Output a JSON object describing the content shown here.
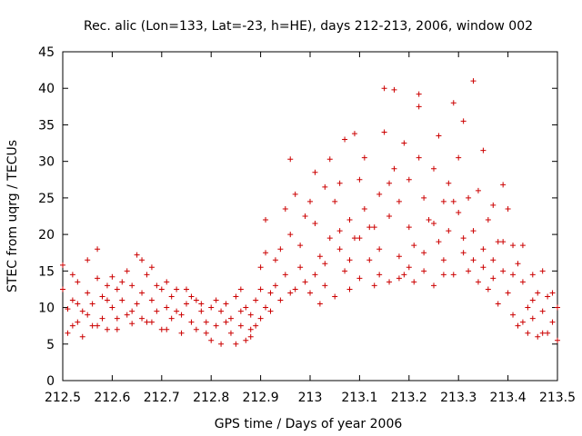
{
  "chart_data": {
    "type": "scatter",
    "title": "Rec. alic (Lon=133, Lat=-23, h=HE), days 212-213, 2006, window 002",
    "xlabel": "GPS time / Days of year 2006",
    "ylabel": "STEC from uqrg / TECUs",
    "xlim": [
      212.5,
      213.5
    ],
    "ylim": [
      0,
      45
    ],
    "x_ticks": [
      212.5,
      212.6,
      212.7,
      212.8,
      212.9,
      213.0,
      213.1,
      213.2,
      213.3,
      213.4,
      213.5
    ],
    "x_tick_labels": [
      "212.5",
      "212.6",
      "212.7",
      "212.8",
      "212.9",
      "213",
      "213.1",
      "213.2",
      "213.3",
      "213.4",
      "213.5"
    ],
    "y_ticks": [
      0,
      5,
      10,
      15,
      20,
      25,
      30,
      35,
      40,
      45
    ],
    "y_tick_labels": [
      "0",
      "5",
      "10",
      "15",
      "20",
      "25",
      "30",
      "35",
      "40",
      "45"
    ],
    "grid": false,
    "marker": "+",
    "color": "#cc0000",
    "series": [
      {
        "name": "",
        "points": [
          [
            212.5,
            15.8
          ],
          [
            212.5,
            12.5
          ],
          [
            212.51,
            9.8
          ],
          [
            212.51,
            6.5
          ],
          [
            212.52,
            14.5
          ],
          [
            212.52,
            11.0
          ],
          [
            212.53,
            8.0
          ],
          [
            212.53,
            13.5
          ],
          [
            212.54,
            9.5
          ],
          [
            212.54,
            6.0
          ],
          [
            212.55,
            12.0
          ],
          [
            212.55,
            16.5
          ],
          [
            212.56,
            10.5
          ],
          [
            212.56,
            7.5
          ],
          [
            212.57,
            14.0
          ],
          [
            212.57,
            18.0
          ],
          [
            212.58,
            11.5
          ],
          [
            212.58,
            8.5
          ],
          [
            212.59,
            13.0
          ],
          [
            212.59,
            7.0
          ],
          [
            212.6,
            10.0
          ],
          [
            212.6,
            14.2
          ],
          [
            212.61,
            8.5
          ],
          [
            212.61,
            12.5
          ],
          [
            212.62,
            11.0
          ],
          [
            212.63,
            9.0
          ],
          [
            212.63,
            15.0
          ],
          [
            212.64,
            13.0
          ],
          [
            212.64,
            7.8
          ],
          [
            212.65,
            17.2
          ],
          [
            212.65,
            10.5
          ],
          [
            212.66,
            16.5
          ],
          [
            212.66,
            12.0
          ],
          [
            212.67,
            8.0
          ],
          [
            212.67,
            14.5
          ],
          [
            212.68,
            11.0
          ],
          [
            212.68,
            15.5
          ],
          [
            212.69,
            9.5
          ],
          [
            212.7,
            12.5
          ],
          [
            212.7,
            7.0
          ],
          [
            212.71,
            10.0
          ],
          [
            212.71,
            13.5
          ],
          [
            212.72,
            8.5
          ],
          [
            212.72,
            11.5
          ],
          [
            212.73,
            12.5
          ],
          [
            212.74,
            9.0
          ],
          [
            212.74,
            6.5
          ],
          [
            212.75,
            10.5
          ],
          [
            212.75,
            12.5
          ],
          [
            212.76,
            8.0
          ],
          [
            212.77,
            11.0
          ],
          [
            212.77,
            7.0
          ],
          [
            212.78,
            10.5
          ],
          [
            212.78,
            9.5
          ],
          [
            212.79,
            6.5
          ],
          [
            212.8,
            10.0
          ],
          [
            212.8,
            5.5
          ],
          [
            212.81,
            11.0
          ],
          [
            212.81,
            7.5
          ],
          [
            212.82,
            9.5
          ],
          [
            212.82,
            5.0
          ],
          [
            212.83,
            10.5
          ],
          [
            212.84,
            6.5
          ],
          [
            212.84,
            8.5
          ],
          [
            212.85,
            11.5
          ],
          [
            212.85,
            5.0
          ],
          [
            212.86,
            7.5
          ],
          [
            212.86,
            12.5
          ],
          [
            212.87,
            5.5
          ],
          [
            212.87,
            10.0
          ],
          [
            212.88,
            6.0
          ],
          [
            212.88,
            9.0
          ],
          [
            212.89,
            11.0
          ],
          [
            212.89,
            7.5
          ],
          [
            212.9,
            15.5
          ],
          [
            212.9,
            8.5
          ],
          [
            212.91,
            22.0
          ],
          [
            212.91,
            10.0
          ],
          [
            212.91,
            17.5
          ],
          [
            212.92,
            12.0
          ],
          [
            212.92,
            9.5
          ],
          [
            212.93,
            13.0
          ],
          [
            212.94,
            18.0
          ],
          [
            212.94,
            11.0
          ],
          [
            212.95,
            23.5
          ],
          [
            212.95,
            14.5
          ],
          [
            212.96,
            30.3
          ],
          [
            212.96,
            20.0
          ],
          [
            212.97,
            25.5
          ],
          [
            212.97,
            12.5
          ],
          [
            212.98,
            18.5
          ],
          [
            212.98,
            15.5
          ],
          [
            212.99,
            22.5
          ],
          [
            213.0,
            12.0
          ],
          [
            213.01,
            28.5
          ],
          [
            213.01,
            14.5
          ],
          [
            213.01,
            21.5
          ],
          [
            213.02,
            10.5
          ],
          [
            213.02,
            17.0
          ],
          [
            213.03,
            26.5
          ],
          [
            213.03,
            13.0
          ],
          [
            213.04,
            30.3
          ],
          [
            213.04,
            19.5
          ],
          [
            213.05,
            24.5
          ],
          [
            213.05,
            11.5
          ],
          [
            213.06,
            18.0
          ],
          [
            213.06,
            27.0
          ],
          [
            213.07,
            15.0
          ],
          [
            213.07,
            33.0
          ],
          [
            213.08,
            22.0
          ],
          [
            213.08,
            12.5
          ],
          [
            213.09,
            33.8
          ],
          [
            213.09,
            19.5
          ],
          [
            213.1,
            27.5
          ],
          [
            213.1,
            14.0
          ],
          [
            213.11,
            23.5
          ],
          [
            213.11,
            30.5
          ],
          [
            213.12,
            16.5
          ],
          [
            213.13,
            21.0
          ],
          [
            213.13,
            13.0
          ],
          [
            213.14,
            25.5
          ],
          [
            213.14,
            18.0
          ],
          [
            213.15,
            34.0
          ],
          [
            213.15,
            40.0
          ],
          [
            213.16,
            22.5
          ],
          [
            213.16,
            13.5
          ],
          [
            213.17,
            39.8
          ],
          [
            213.17,
            29.0
          ],
          [
            213.18,
            17.0
          ],
          [
            213.18,
            24.5
          ],
          [
            213.19,
            32.5
          ],
          [
            213.19,
            14.5
          ],
          [
            213.2,
            21.0
          ],
          [
            213.2,
            27.5
          ],
          [
            213.21,
            13.5
          ],
          [
            213.21,
            18.5
          ],
          [
            213.22,
            30.5
          ],
          [
            213.22,
            39.2
          ],
          [
            213.22,
            37.5
          ],
          [
            213.23,
            25.0
          ],
          [
            213.23,
            15.0
          ],
          [
            213.24,
            22.0
          ],
          [
            213.25,
            29.0
          ],
          [
            213.25,
            13.0
          ],
          [
            213.26,
            19.0
          ],
          [
            213.26,
            33.5
          ],
          [
            213.27,
            24.5
          ],
          [
            213.27,
            16.5
          ],
          [
            213.28,
            27.0
          ],
          [
            213.28,
            20.5
          ],
          [
            213.29,
            38.0
          ],
          [
            213.29,
            14.5
          ],
          [
            213.3,
            30.5
          ],
          [
            213.3,
            23.0
          ],
          [
            213.31,
            17.5
          ],
          [
            213.31,
            35.5
          ],
          [
            213.32,
            25.0
          ],
          [
            213.32,
            15.0
          ],
          [
            213.33,
            41.0
          ],
          [
            213.33,
            20.5
          ],
          [
            213.34,
            26.0
          ],
          [
            213.34,
            13.5
          ],
          [
            213.35,
            31.5
          ],
          [
            213.35,
            18.0
          ],
          [
            213.36,
            22.0
          ],
          [
            213.36,
            12.5
          ],
          [
            213.37,
            24.0
          ],
          [
            213.37,
            16.5
          ],
          [
            213.38,
            19.0
          ],
          [
            213.38,
            10.5
          ],
          [
            213.39,
            26.8
          ],
          [
            213.39,
            15.0
          ],
          [
            213.4,
            23.5
          ],
          [
            213.4,
            12.0
          ],
          [
            213.41,
            18.5
          ],
          [
            213.41,
            9.0
          ],
          [
            213.42,
            16.0
          ],
          [
            213.42,
            7.5
          ],
          [
            213.43,
            13.5
          ],
          [
            213.43,
            18.5
          ],
          [
            213.44,
            10.0
          ],
          [
            213.44,
            6.5
          ],
          [
            213.45,
            14.5
          ],
          [
            213.45,
            8.5
          ],
          [
            213.46,
            12.0
          ],
          [
            213.46,
            6.0
          ],
          [
            213.47,
            15.0
          ],
          [
            213.47,
            9.5
          ],
          [
            213.48,
            11.5
          ],
          [
            213.48,
            6.5
          ],
          [
            213.49,
            12.0
          ],
          [
            213.49,
            8.0
          ],
          [
            213.5,
            10.0
          ],
          [
            213.5,
            5.5
          ],
          [
            212.52,
            7.5
          ],
          [
            212.53,
            10.5
          ],
          [
            212.55,
            9.0
          ],
          [
            212.57,
            7.5
          ],
          [
            212.59,
            11.0
          ],
          [
            212.61,
            7.0
          ],
          [
            212.62,
            13.5
          ],
          [
            212.64,
            9.5
          ],
          [
            212.66,
            8.5
          ],
          [
            212.68,
            8.0
          ],
          [
            212.69,
            13.0
          ],
          [
            212.71,
            7.0
          ],
          [
            212.73,
            9.5
          ],
          [
            212.76,
            11.5
          ],
          [
            212.79,
            8.0
          ],
          [
            212.83,
            8.0
          ],
          [
            212.86,
            9.5
          ],
          [
            212.88,
            7.0
          ],
          [
            212.9,
            12.5
          ],
          [
            212.93,
            16.5
          ],
          [
            212.96,
            12.0
          ],
          [
            212.99,
            13.5
          ],
          [
            213.0,
            24.5
          ],
          [
            213.03,
            16.0
          ],
          [
            213.06,
            20.5
          ],
          [
            213.08,
            16.5
          ],
          [
            213.1,
            19.5
          ],
          [
            213.12,
            21.0
          ],
          [
            213.14,
            14.5
          ],
          [
            213.16,
            27.0
          ],
          [
            213.18,
            14.0
          ],
          [
            213.2,
            15.5
          ],
          [
            213.23,
            17.5
          ],
          [
            213.25,
            21.5
          ],
          [
            213.27,
            14.5
          ],
          [
            213.29,
            24.5
          ],
          [
            213.31,
            19.5
          ],
          [
            213.33,
            16.5
          ],
          [
            213.35,
            15.5
          ],
          [
            213.37,
            14.0
          ],
          [
            213.39,
            19.0
          ],
          [
            213.41,
            14.5
          ],
          [
            213.43,
            8.0
          ],
          [
            213.45,
            11.0
          ],
          [
            213.47,
            6.5
          ]
        ]
      }
    ]
  }
}
